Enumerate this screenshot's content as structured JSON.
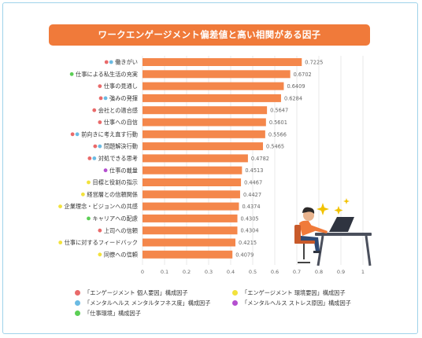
{
  "title": "ワークエンゲージメント偏差値と高い相関がある因子",
  "colors": {
    "accent": "#f07a3a",
    "bar": "#f4874b",
    "red": "#e96a6a",
    "blue": "#6bbbe3",
    "green": "#5ccf55",
    "yellow": "#f2e23c",
    "purple": "#b44fcf"
  },
  "legend": [
    {
      "label": "「エンゲージメント 個人要因」構成因子",
      "color": "red"
    },
    {
      "label": "「エンゲージメント 環境要因」構成因子",
      "color": "yellow"
    },
    {
      "label": "「メンタルヘルス メンタルタフネス度」構成因子",
      "color": "blue"
    },
    {
      "label": "「メンタルヘルス ストレス原因」構成因子",
      "color": "purple"
    },
    {
      "label": "「仕事環境」構成因子",
      "color": "green"
    }
  ],
  "chart_data": {
    "type": "bar",
    "orientation": "horizontal",
    "categories": [
      "働きがい",
      "仕事による私生活の充実",
      "仕事の見通し",
      "強みの発揮",
      "会社との適合感",
      "仕事への自信",
      "前向きに考え直す行動",
      "問題解決行動",
      "対処できる思考",
      "仕事の裁量",
      "目標と役割の指示",
      "経営層との信頼関係",
      "企業理念・ビジョンへの共感",
      "キャリアへの配慮",
      "上司への信頼",
      "仕事に対するフィードバック",
      "同僚への信頼"
    ],
    "values": [
      0.7225,
      0.6702,
      0.6409,
      0.6284,
      0.5647,
      0.5601,
      0.5566,
      0.5465,
      0.4782,
      0.4513,
      0.4467,
      0.4427,
      0.4374,
      0.4305,
      0.4304,
      0.4215,
      0.4079
    ],
    "value_labels": [
      "0.7225",
      "0.6702",
      "0.6409",
      "0.6284",
      "0.5647",
      "0.5601",
      "0.5566",
      "0.5465",
      "0.4782",
      "0.4513",
      "0.4467",
      "0.4427",
      "0.4374",
      "0.4305",
      "0.4304",
      "0.4215",
      "0.4079"
    ],
    "category_markers": [
      [
        "red",
        "blue"
      ],
      [
        "green"
      ],
      [
        "red"
      ],
      [
        "red",
        "blue"
      ],
      [
        "red"
      ],
      [
        "red"
      ],
      [
        "red",
        "blue"
      ],
      [
        "red",
        "blue"
      ],
      [
        "red",
        "blue"
      ],
      [
        "purple"
      ],
      [
        "yellow"
      ],
      [
        "yellow"
      ],
      [
        "yellow"
      ],
      [
        "green"
      ],
      [
        "red"
      ],
      [
        "yellow"
      ],
      [
        "yellow"
      ]
    ],
    "xlim": [
      0,
      1
    ],
    "xticks": [
      "0",
      "0.1",
      "0.2",
      "0.3",
      "0.4",
      "0.5",
      "0.6",
      "0.7",
      "0.8",
      "0.9",
      "1"
    ],
    "grid": true
  }
}
